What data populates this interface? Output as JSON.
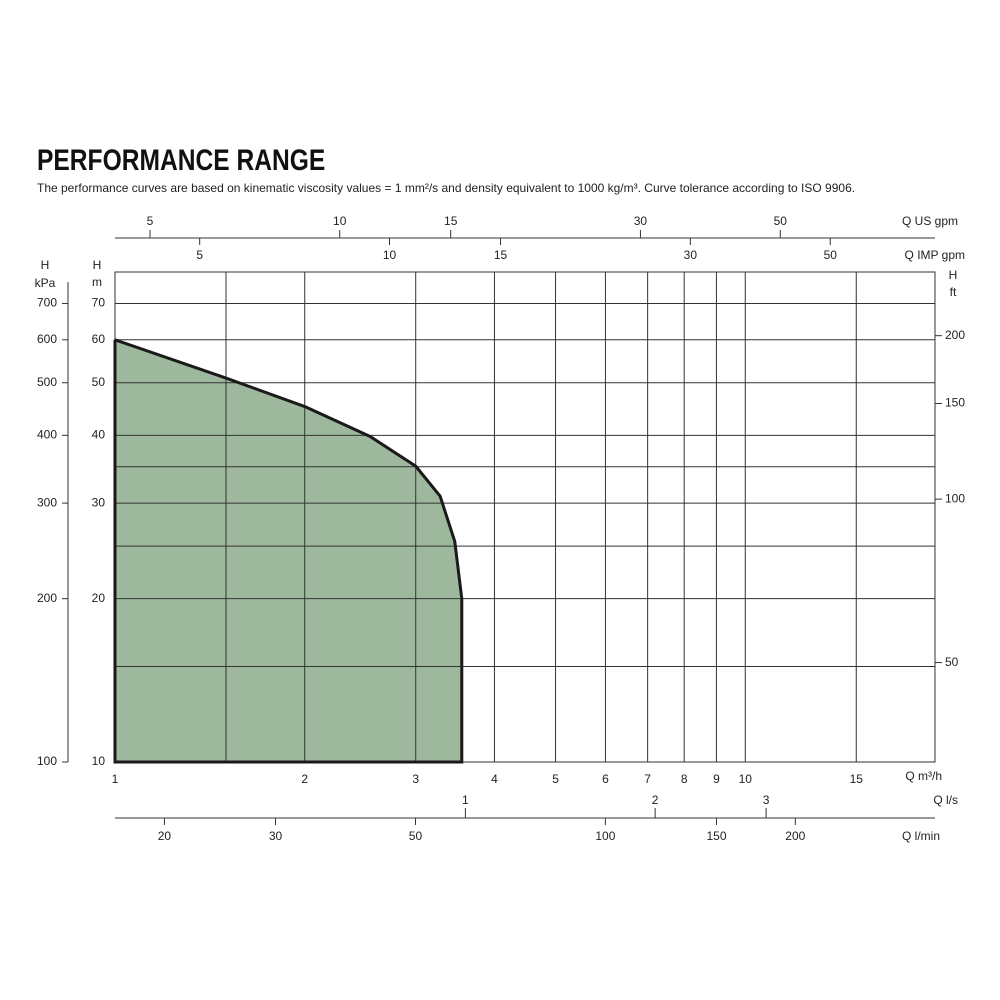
{
  "chart_data": {
    "type": "area",
    "title": "PERFORMANCE RANGE",
    "subtitle": "The performance curves are based on kinematic viscosity values = 1 mm²/s and density equivalent to 1000 kg/m³. Curve tolerance according to ISO 9906.",
    "x": [
      1,
      1.5,
      2,
      2.54,
      3,
      3.28,
      3.46,
      3.55
    ],
    "values": [
      60,
      51,
      45.2,
      39.8,
      35.1,
      30.9,
      25.5,
      20
    ],
    "color": "#9db89c",
    "stroke": "#1a1a1a",
    "xscale": "log",
    "yscale": "log",
    "xlim": [
      1,
      20
    ],
    "ylim": [
      10,
      80
    ],
    "xticks": [
      1,
      2,
      3,
      4,
      5,
      6,
      7,
      8,
      9,
      10,
      15
    ],
    "minor_xticks": [
      1.5
    ],
    "yticks": [
      10,
      20,
      30,
      40,
      50,
      60,
      70
    ],
    "minor_yticks": [
      15,
      25,
      35
    ],
    "xlabel": "Q m³/h",
    "ylabel": [
      "H",
      "m"
    ],
    "grid": true,
    "secondary_axes": [
      {
        "side": "top",
        "label": [
          "Q US gpm"
        ],
        "lim": [
          4.4,
          88
        ],
        "ticks": [
          5,
          10,
          15,
          30,
          50
        ]
      },
      {
        "side": "top2",
        "label": [
          "Q IMP gpm"
        ],
        "lim": [
          3.67,
          73.3
        ],
        "ticks": [
          5,
          10,
          15,
          30,
          50
        ]
      },
      {
        "side": "bottom2",
        "label": [
          "Q l/s"
        ],
        "lim": [
          0.278,
          5.56
        ],
        "ticks": [
          1,
          2,
          3
        ]
      },
      {
        "side": "bottom3",
        "label": [
          "Q l/min"
        ],
        "lim": [
          16.7,
          333
        ],
        "ticks": [
          20,
          30,
          50,
          100,
          150,
          200
        ]
      },
      {
        "side": "left2",
        "label": [
          "H",
          "kPa"
        ],
        "lim": [
          100,
          800
        ],
        "ticks": [
          100,
          200,
          300,
          400,
          500,
          600,
          700
        ]
      },
      {
        "side": "right",
        "label": [
          "H",
          "ft"
        ],
        "lim": [
          32.8,
          262
        ],
        "ticks": [
          50,
          100,
          150,
          200
        ]
      }
    ]
  }
}
